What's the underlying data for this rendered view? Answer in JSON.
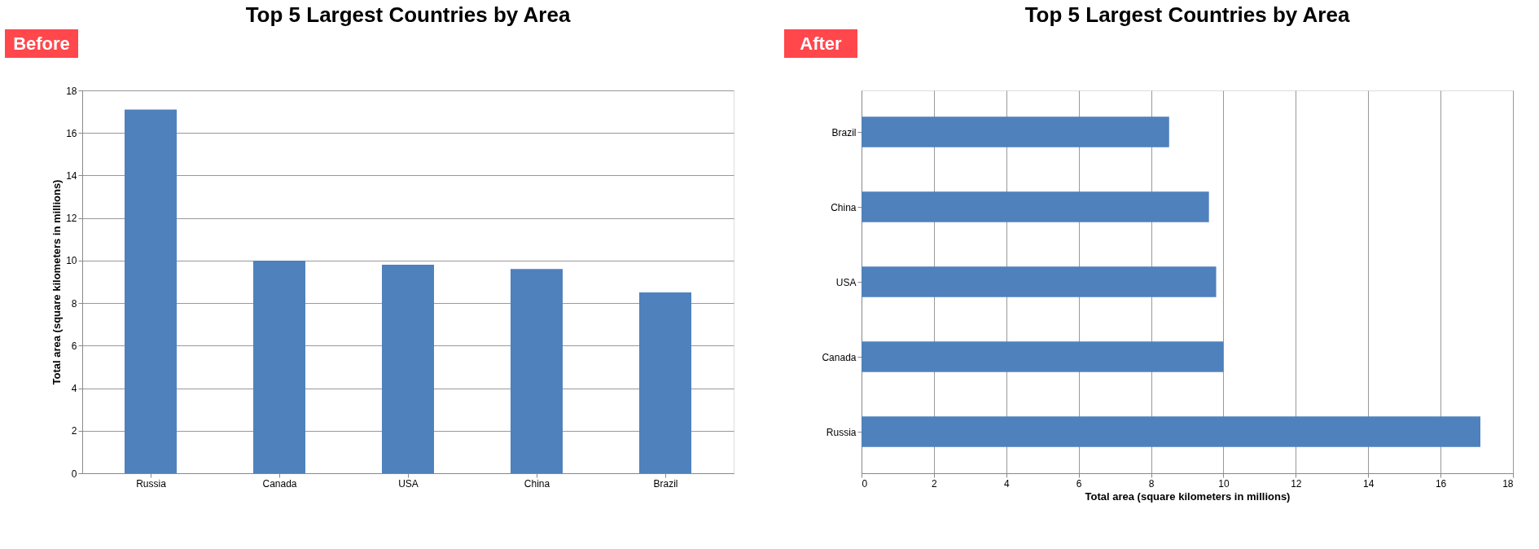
{
  "chart_data": [
    {
      "type": "bar",
      "title": "Top 5 Largest Countries by Area",
      "ylabel": "Total area (square kilometers in millions)",
      "categories": [
        "Russia",
        "Canada",
        "USA",
        "China",
        "Brazil"
      ],
      "values": [
        17.1,
        10.0,
        9.8,
        9.6,
        8.5
      ],
      "color": "#4f81bd",
      "ylim": [
        0,
        18
      ],
      "yticks": [
        0,
        2,
        4,
        6,
        8,
        10,
        12,
        14,
        16,
        18
      ],
      "grid": "y",
      "annotations": [
        "Before"
      ]
    },
    {
      "type": "bar",
      "orientation": "horizontal",
      "title": "Top 5 Largest Countries by Area",
      "xlabel": "Total area (square kilometers in millions)",
      "categories": [
        "Brazil",
        "China",
        "USA",
        "Canada",
        "Russia"
      ],
      "values": [
        8.5,
        9.6,
        9.8,
        10.0,
        17.1
      ],
      "color": "#4f81bd",
      "xlim": [
        0,
        18
      ],
      "xticks": [
        0,
        2,
        4,
        6,
        8,
        10,
        12,
        14,
        16,
        18
      ],
      "grid": "x",
      "annotations": [
        "After"
      ]
    }
  ]
}
